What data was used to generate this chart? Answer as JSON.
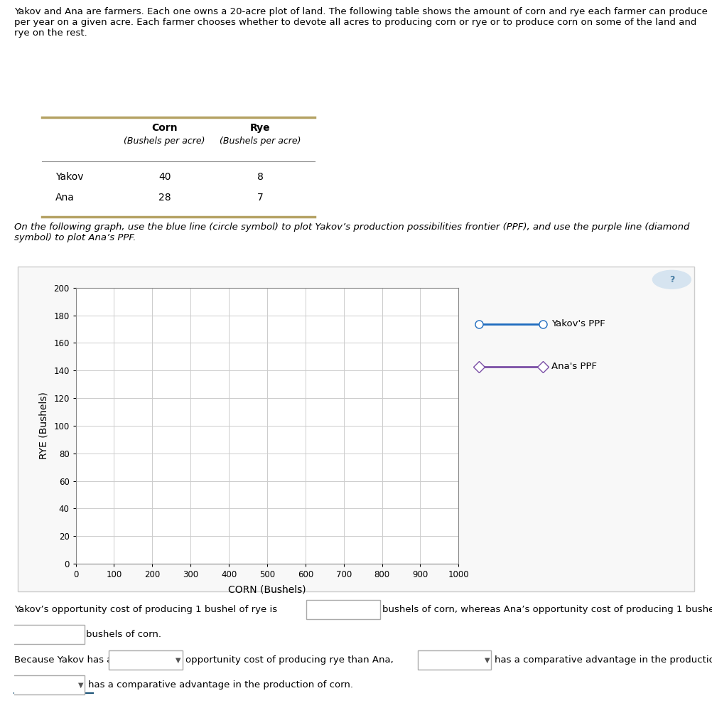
{
  "desc_text": "Yakov and Ana are farmers. Each one owns a 20-acre plot of land. The following table shows the amount of corn and rye each farmer can produce per year on a given acre. Each farmer chooses whether to devote all acres to producing corn or rye or to produce corn on some of the land and rye on the rest.",
  "table_corn_header": "Corn",
  "table_rye_header": "Rye",
  "table_sub_header": "(Bushels per acre)",
  "table_rows": [
    {
      "name": "Yakov",
      "corn": "40",
      "rye": "8"
    },
    {
      "name": "Ana",
      "corn": "28",
      "rye": "7"
    }
  ],
  "instruction_text": "On the following graph, use the blue line (circle symbol) to plot Yakov’s production possibilities frontier (PPF), and use the purple line (diamond symbol) to plot Ana’s PPF.",
  "graph": {
    "xlabel": "CORN (Bushels)",
    "ylabel": "RYE (Bushels)",
    "xlim": [
      0,
      1000
    ],
    "ylim": [
      0,
      200
    ],
    "xticks": [
      0,
      100,
      200,
      300,
      400,
      500,
      600,
      700,
      800,
      900,
      1000
    ],
    "yticks": [
      0,
      20,
      40,
      60,
      80,
      100,
      120,
      140,
      160,
      180,
      200
    ],
    "yakov_color": "#1f6cbf",
    "ana_color": "#7b4fa6",
    "grid_color": "#cccccc"
  },
  "table_line_color": "#b5a264",
  "question_btn_color": "#d6e4f0",
  "question_btn_text_color": "#4a7fa5"
}
